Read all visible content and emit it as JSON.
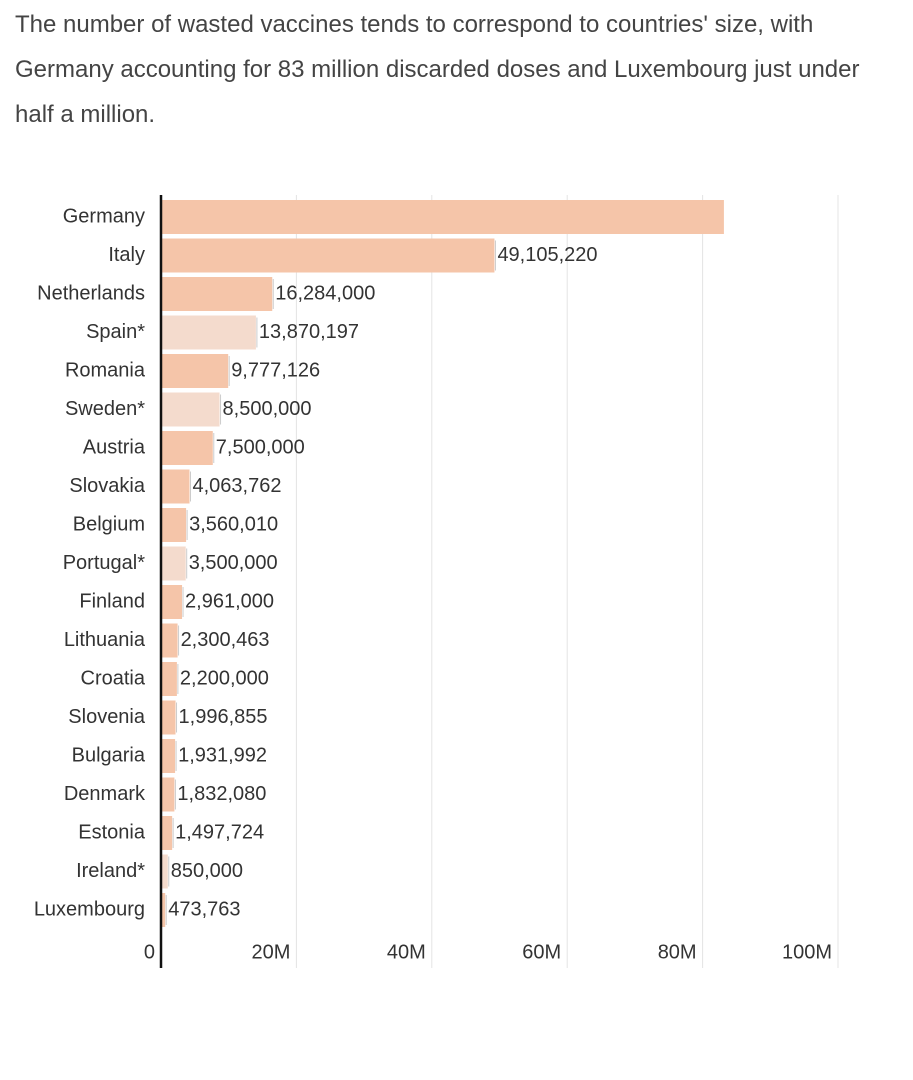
{
  "intro": "The number of wasted vaccines tends to correspond to countries' size, with Germany accounting for 83 million discarded doses and Luxembourg just under half a million.",
  "chart_data": {
    "type": "bar",
    "orientation": "horizontal",
    "categories": [
      "Germany",
      "Italy",
      "Netherlands",
      "Spain*",
      "Romania",
      "Sweden*",
      "Austria",
      "Slovakia",
      "Belgium",
      "Portugal*",
      "Finland",
      "Lithuania",
      "Croatia",
      "Slovenia",
      "Bulgaria",
      "Denmark",
      "Estonia",
      "Ireland*",
      "Luxembourg"
    ],
    "values": [
      83000000,
      49105220,
      16284000,
      13870197,
      9777126,
      8500000,
      7500000,
      4063762,
      3560010,
      3500000,
      2961000,
      2300463,
      2200000,
      1996855,
      1931992,
      1832080,
      1497724,
      850000,
      473763
    ],
    "value_labels": [
      null,
      "49,105,220",
      "16,284,000",
      "13,870,197",
      "9,777,126",
      "8,500,000",
      "7,500,000",
      "4,063,762",
      "3,560,010",
      "3,500,000",
      "2,961,000",
      "2,300,463",
      "2,200,000",
      "1,996,855",
      "1,931,992",
      "1,832,080",
      "1,497,724",
      "850,000",
      "473,763"
    ],
    "colors": [
      "#f5c5a9",
      "#f5c5a9",
      "#f5c5a9",
      "#f4dbcd",
      "#f5c5a9",
      "#f4dbcd",
      "#f5c5a9",
      "#f5c5a9",
      "#f5c5a9",
      "#f4dbcd",
      "#f5c5a9",
      "#f5c5a9",
      "#f5c5a9",
      "#f5c5a9",
      "#f5c5a9",
      "#f5c5a9",
      "#f5c5a9",
      "#f4dbcd",
      "#f5c5a9"
    ],
    "xlim": [
      0,
      100000000
    ],
    "xticks": [
      0,
      {
        "value": 20000000,
        "label": "20M"
      },
      {
        "value": 40000000,
        "label": "40M"
      },
      {
        "value": 60000000,
        "label": "60M"
      },
      {
        "value": 80000000,
        "label": "80M"
      },
      {
        "value": 100000000,
        "label": "100M"
      }
    ],
    "grid": true
  }
}
